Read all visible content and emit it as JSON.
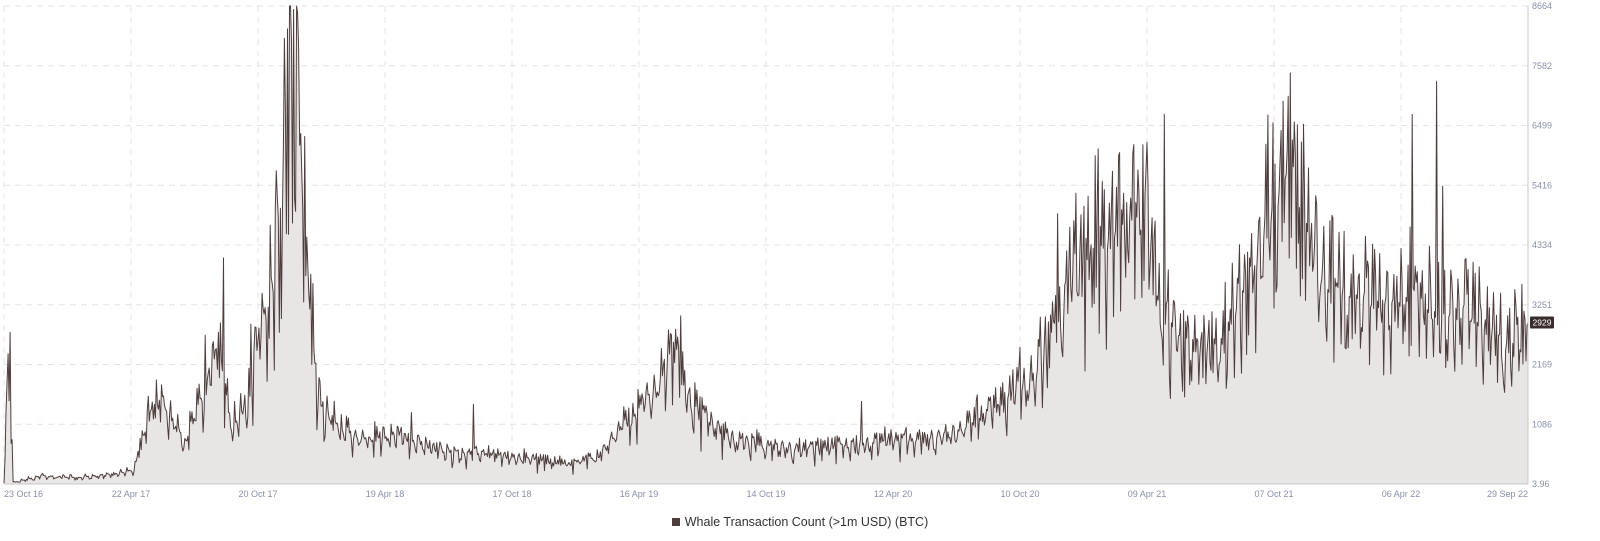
{
  "chart_data": {
    "type": "area",
    "x_labels": [
      "23 Oct 16",
      "22 Apr 17",
      "20 Oct 17",
      "19 Apr 18",
      "17 Oct 18",
      "16 Apr 19",
      "14 Oct 19",
      "12 Apr 20",
      "10 Oct 20",
      "09 Apr 21",
      "07 Oct 21",
      "06 Apr 22",
      "29 Sep 22"
    ],
    "y_ticks": [
      "3.96",
      "1086",
      "2169",
      "3251",
      "4334",
      "5416",
      "6499",
      "7582",
      "8664"
    ],
    "ylim": [
      3.96,
      8664
    ],
    "last_value_label": "2929",
    "grid": true,
    "series": [
      {
        "name": "Whale Transaction Count (>1m USD) (BTC)",
        "color": "#4e3d3d",
        "fill": "#e8e6e5",
        "anchors": [
          [
            0.0,
            30
          ],
          [
            0.003,
            2750
          ],
          [
            0.006,
            30
          ],
          [
            0.025,
            150
          ],
          [
            0.05,
            120
          ],
          [
            0.075,
            200
          ],
          [
            0.085,
            250
          ],
          [
            0.098,
            1500
          ],
          [
            0.11,
            1200
          ],
          [
            0.12,
            800
          ],
          [
            0.13,
            1600
          ],
          [
            0.14,
            2500
          ],
          [
            0.15,
            1000
          ],
          [
            0.16,
            1500
          ],
          [
            0.17,
            3000
          ],
          [
            0.178,
            4000
          ],
          [
            0.186,
            7500
          ],
          [
            0.19,
            8400
          ],
          [
            0.196,
            5500
          ],
          [
            0.2,
            3800
          ],
          [
            0.206,
            1500
          ],
          [
            0.22,
            1000
          ],
          [
            0.24,
            800
          ],
          [
            0.26,
            900
          ],
          [
            0.275,
            700
          ],
          [
            0.29,
            600
          ],
          [
            0.31,
            550
          ],
          [
            0.33,
            500
          ],
          [
            0.35,
            450
          ],
          [
            0.37,
            350
          ],
          [
            0.39,
            500
          ],
          [
            0.41,
            1200
          ],
          [
            0.425,
            1600
          ],
          [
            0.44,
            2500
          ],
          [
            0.45,
            1500
          ],
          [
            0.465,
            1100
          ],
          [
            0.48,
            800
          ],
          [
            0.5,
            700
          ],
          [
            0.52,
            650
          ],
          [
            0.54,
            700
          ],
          [
            0.56,
            700
          ],
          [
            0.58,
            800
          ],
          [
            0.6,
            800
          ],
          [
            0.62,
            900
          ],
          [
            0.64,
            1200
          ],
          [
            0.66,
            1600
          ],
          [
            0.675,
            2000
          ],
          [
            0.69,
            2900
          ],
          [
            0.7,
            3800
          ],
          [
            0.71,
            4200
          ],
          [
            0.725,
            4500
          ],
          [
            0.74,
            4700
          ],
          [
            0.75,
            4800
          ],
          [
            0.76,
            3000
          ],
          [
            0.78,
            2500
          ],
          [
            0.8,
            2600
          ],
          [
            0.815,
            3500
          ],
          [
            0.825,
            4600
          ],
          [
            0.835,
            5400
          ],
          [
            0.845,
            5800
          ],
          [
            0.855,
            4800
          ],
          [
            0.865,
            3700
          ],
          [
            0.88,
            3400
          ],
          [
            0.9,
            3300
          ],
          [
            0.92,
            3400
          ],
          [
            0.93,
            3500
          ],
          [
            0.94,
            3000
          ],
          [
            0.96,
            3100
          ],
          [
            0.975,
            2800
          ],
          [
            0.985,
            2500
          ],
          [
            0.994,
            2500
          ],
          [
            1.0,
            2929
          ]
        ],
        "spikes": [
          [
            0.004,
            2750
          ],
          [
            0.132,
            2700
          ],
          [
            0.144,
            4100
          ],
          [
            0.162,
            2900
          ],
          [
            0.181,
            5000
          ],
          [
            0.186,
            8250
          ],
          [
            0.19,
            8600
          ],
          [
            0.197,
            6300
          ],
          [
            0.267,
            1300
          ],
          [
            0.308,
            1450
          ],
          [
            0.444,
            3050
          ],
          [
            0.563,
            1500
          ],
          [
            0.691,
            4900
          ],
          [
            0.716,
            5950
          ],
          [
            0.747,
            6150
          ],
          [
            0.761,
            6700
          ],
          [
            0.834,
            5800
          ],
          [
            0.844,
            7450
          ],
          [
            0.851,
            6200
          ],
          [
            0.924,
            6700
          ],
          [
            0.94,
            7300
          ],
          [
            0.944,
            5400
          ]
        ]
      }
    ]
  }
}
